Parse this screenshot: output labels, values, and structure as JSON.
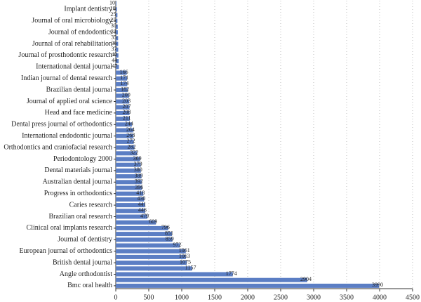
{
  "chart_data": {
    "type": "barh",
    "color": "#5b7ec4",
    "categories": [
      null,
      "Implant dentistry",
      null,
      "Journal of oral microbiology",
      null,
      "Journal of endodontics",
      null,
      "Journal of oral rehabilitation",
      null,
      "Journal of prosthodontic research",
      null,
      "International dental journal",
      null,
      "Indian journal of dental research",
      null,
      "Brazilian dental journal",
      null,
      "Journal of applied oral science",
      null,
      "Head and face medicine",
      null,
      "Dental press journal of orthodontics",
      null,
      "International endodontic journal",
      null,
      "Orthodontics and craniofacial research",
      null,
      "Periodontology 2000",
      null,
      "Dental materials journal",
      null,
      "Australian dental journal",
      null,
      "Progress in orthodontics",
      null,
      "Caries research",
      null,
      "Brazilian oral research",
      null,
      "Clinical oral implants research",
      null,
      "Journal of dentistry",
      null,
      "European journal of orthodontics",
      null,
      "British dental journal",
      null,
      "Angle orthodontist",
      null,
      "Bmc oral health"
    ],
    "values": [
      10,
      18,
      25,
      25,
      30,
      31,
      35,
      36,
      37,
      40,
      44,
      47,
      166,
      171,
      174,
      182,
      200,
      203,
      207,
      208,
      211,
      244,
      264,
      268,
      272,
      282,
      322,
      369,
      379,
      380,
      389,
      392,
      396,
      418,
      430,
      441,
      446,
      479,
      609,
      796,
      851,
      859,
      972,
      1061,
      1063,
      1075,
      1157,
      1774,
      2904,
      3990
    ],
    "xlim": [
      0,
      4500
    ],
    "xticks": [
      0,
      500,
      1000,
      1500,
      2000,
      2500,
      3000,
      3500,
      4000,
      4500
    ],
    "grid": true
  }
}
